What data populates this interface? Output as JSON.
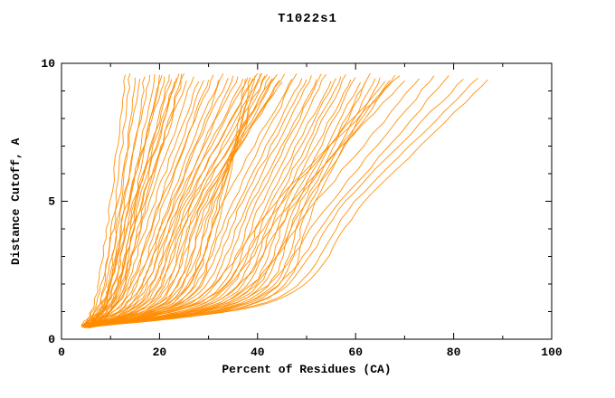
{
  "chart_data": {
    "type": "line",
    "title": "T1022s1",
    "xlabel": "Percent of Residues (CA)",
    "ylabel": "Distance Cutoff, A",
    "xlim": [
      0,
      100
    ],
    "ylim": [
      0,
      10
    ],
    "x_major_ticks": [
      0,
      20,
      40,
      60,
      80,
      100
    ],
    "x_minor_step": 10,
    "y_major_ticks": [
      0,
      5,
      10
    ],
    "y_minor_step": 1,
    "grid": false,
    "legend": "none",
    "line_color": "#ff8c00",
    "frame_color": "#000000",
    "series_description": "Ensemble of per-model accuracy curves: x = percent of CA residues under distance cutoff y (A). Each curve given as x at anchor cutoffs.",
    "curve_anchors_y": [
      0.45,
      1.5,
      5.0,
      9.65
    ],
    "curves": [
      [
        4.2,
        7,
        10,
        13
      ],
      [
        4.5,
        8,
        11,
        14
      ],
      [
        5.0,
        9,
        12,
        15
      ],
      [
        4.0,
        7.5,
        11.5,
        16
      ],
      [
        5.2,
        9.5,
        13,
        17
      ],
      [
        4.4,
        8.2,
        12.5,
        18
      ],
      [
        4.8,
        10,
        14,
        19
      ],
      [
        5.5,
        11,
        15,
        20
      ],
      [
        4.1,
        9,
        13.5,
        21
      ],
      [
        4.6,
        10.5,
        15.5,
        22
      ],
      [
        5.0,
        11.5,
        16,
        23
      ],
      [
        4.3,
        9.8,
        15,
        24
      ],
      [
        5.6,
        12,
        17,
        25
      ],
      [
        4.9,
        10.2,
        16.5,
        25.5
      ],
      [
        4.2,
        8.8,
        14.8,
        22.5
      ],
      [
        5.3,
        11.8,
        17.5,
        24.5
      ],
      [
        4.7,
        9.2,
        13.8,
        20.5
      ],
      [
        5.1,
        10.8,
        16.2,
        23.5
      ],
      [
        4.4,
        11,
        18,
        27
      ],
      [
        5.0,
        12,
        19,
        28
      ],
      [
        4.6,
        13,
        20,
        29
      ],
      [
        5.4,
        14,
        21,
        30
      ],
      [
        4.2,
        12.5,
        20.5,
        31
      ],
      [
        4.9,
        15,
        22,
        32
      ],
      [
        5.7,
        16,
        23,
        33
      ],
      [
        4.3,
        13.5,
        22.5,
        34
      ],
      [
        5.1,
        17,
        24,
        35
      ],
      [
        4.7,
        14.5,
        23.5,
        36
      ],
      [
        5.5,
        18,
        25,
        37
      ],
      [
        4.1,
        15.5,
        24.5,
        38
      ],
      [
        4.8,
        19,
        26,
        39
      ],
      [
        5.2,
        16.5,
        25.5,
        40
      ],
      [
        4.5,
        20,
        27,
        41
      ],
      [
        5.8,
        17.5,
        26.5,
        42
      ],
      [
        4.2,
        21,
        28,
        43
      ],
      [
        5.0,
        18.5,
        27.5,
        44
      ],
      [
        4.6,
        22,
        29,
        45
      ],
      [
        5.3,
        19.5,
        28.5,
        45.5
      ],
      [
        4.4,
        23,
        30,
        44.5
      ],
      [
        5.6,
        20.5,
        29.5,
        43.5
      ],
      [
        4.8,
        24,
        31,
        42.5
      ],
      [
        4.3,
        21.5,
        30.5,
        41.5
      ],
      [
        5.1,
        25,
        32,
        40.5
      ],
      [
        4.9,
        22.5,
        31.5,
        39.5
      ],
      [
        5.4,
        26,
        33,
        38.5
      ],
      [
        4.5,
        23.5,
        32.5,
        37.5
      ],
      [
        4.7,
        24,
        33,
        47
      ],
      [
        5.2,
        25,
        35,
        48
      ],
      [
        4.4,
        26,
        36,
        49
      ],
      [
        5.5,
        27,
        37,
        50
      ],
      [
        4.8,
        28,
        38,
        51
      ],
      [
        4.3,
        29,
        39,
        52
      ],
      [
        5.0,
        30,
        40,
        53
      ],
      [
        5.6,
        31,
        41,
        54
      ],
      [
        4.6,
        32,
        42,
        55
      ],
      [
        5.1,
        33,
        43,
        56
      ],
      [
        4.9,
        34,
        44,
        57
      ],
      [
        5.7,
        35,
        45,
        58
      ],
      [
        4.5,
        36,
        46,
        59
      ],
      [
        5.3,
        37,
        47,
        60
      ],
      [
        4.7,
        38,
        48,
        61
      ],
      [
        5.0,
        39,
        49,
        62
      ],
      [
        5.8,
        40,
        50,
        63
      ],
      [
        4.6,
        41,
        51,
        64
      ],
      [
        5.2,
        42,
        52,
        65
      ],
      [
        4.8,
        30,
        45,
        66
      ],
      [
        5.4,
        33,
        48,
        67
      ],
      [
        4.9,
        36,
        50,
        68
      ],
      [
        5.1,
        28,
        44,
        69
      ],
      [
        5.5,
        31,
        47,
        70
      ],
      [
        5.0,
        35,
        52,
        73
      ],
      [
        5.6,
        38,
        55,
        76
      ],
      [
        4.8,
        40,
        57,
        79
      ],
      [
        5.2,
        42,
        58,
        82
      ],
      [
        5.4,
        44,
        60,
        85
      ],
      [
        5.8,
        45,
        62,
        87
      ]
    ]
  }
}
